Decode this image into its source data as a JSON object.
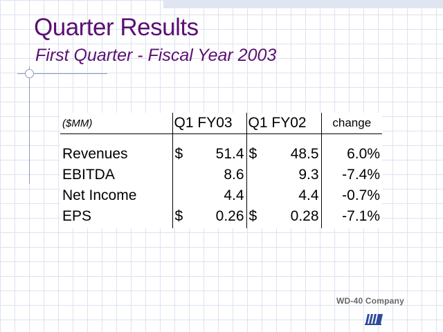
{
  "slide": {
    "title": "Quarter Results",
    "subtitle": "First Quarter - Fiscal Year 2003"
  },
  "table": {
    "unit_label": "($MM)",
    "columns": [
      "Q1 FY03",
      "Q1 FY02",
      "change"
    ],
    "rows": [
      {
        "label": "Revenues",
        "q1fy03_currency": "$",
        "q1fy03": "51.4",
        "q1fy02_currency": "$",
        "q1fy02": "48.5",
        "change": "6.0%"
      },
      {
        "label": "EBITDA",
        "q1fy03_currency": "",
        "q1fy03": "8.6",
        "q1fy02_currency": "",
        "q1fy02": "9.3",
        "change": "-7.4%"
      },
      {
        "label": "Net Income",
        "q1fy03_currency": "",
        "q1fy03": "4.4",
        "q1fy02_currency": "",
        "q1fy02": "4.4",
        "change": "-0.7%"
      },
      {
        "label": "EPS",
        "q1fy03_currency": "$",
        "q1fy03": "0.26",
        "q1fy02_currency": "$",
        "q1fy02": "0.28",
        "change": "-7.1%"
      }
    ]
  },
  "logo": {
    "text": "WD-40 Company",
    "icon": "wd40-stripes-icon"
  },
  "colors": {
    "title": "#5b0f73",
    "grid": "#dde2ee",
    "accent_line": "#8d97c7",
    "logo_mark": "#2e4b9b"
  }
}
